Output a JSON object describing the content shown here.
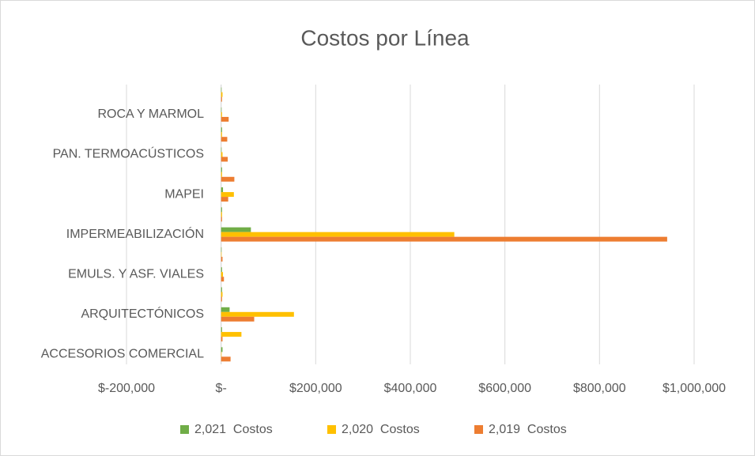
{
  "chart_data": {
    "type": "hbar",
    "title": "Costos por Línea",
    "categories": [
      "ACCESORIOS COMERCIAL",
      null,
      "ARQUITECTÓNICOS",
      null,
      "EMULS. Y ASF. VIALES",
      null,
      "IMPERMEABILIZACIÓN",
      null,
      "MAPEI",
      null,
      "PAN. TERMOACÚSTICOS",
      null,
      "ROCA Y MARMOL",
      null
    ],
    "series": [
      {
        "name": "2,021  Costos",
        "color": "#70ad47",
        "values": [
          3000,
          2000,
          18000,
          2000,
          2000,
          1000,
          63000,
          2000,
          4000,
          2000,
          1000,
          2000,
          1000,
          1000
        ]
      },
      {
        "name": "2,020  Costos",
        "color": "#ffc000",
        "values": [
          1000,
          43000,
          154000,
          3000,
          4000,
          1000,
          493000,
          2000,
          27000,
          2000,
          3000,
          2000,
          2000,
          3000
        ]
      },
      {
        "name": "2,019  Costos",
        "color": "#ed7d31",
        "values": [
          20000,
          3000,
          70000,
          2000,
          6000,
          3000,
          943000,
          2000,
          15000,
          28000,
          14000,
          13000,
          16000,
          2000
        ]
      }
    ],
    "xlim": [
      -200000,
      1000000
    ],
    "xticks": [
      {
        "value": -200000,
        "label": "$-200,000"
      },
      {
        "value": 0,
        "label": "$-"
      },
      {
        "value": 200000,
        "label": "$200,000"
      },
      {
        "value": 400000,
        "label": "$400,000"
      },
      {
        "value": 600000,
        "label": "$600,000"
      },
      {
        "value": 800000,
        "label": "$800,000"
      },
      {
        "value": 1000000,
        "label": "$1,000,000"
      }
    ],
    "grid": true,
    "legend": "bottom"
  }
}
